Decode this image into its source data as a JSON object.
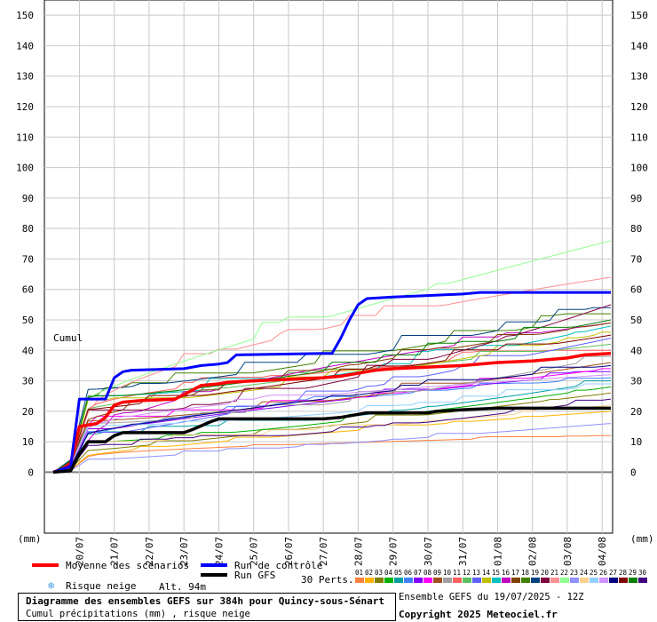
{
  "chart_data": {
    "type": "line",
    "title": "Diagramme des ensembles GEFS sur 384h pour Quincy-sous-Sénart",
    "subtitle": "Cumul précipitations (mm) , risque neige",
    "ylabel_left": "(mm)",
    "ylabel_right": "(mm)",
    "cumul_label": "Cumul",
    "ylim": [
      -20,
      155
    ],
    "yticks": [
      0,
      10,
      20,
      30,
      40,
      50,
      60,
      70,
      80,
      90,
      100,
      110,
      120,
      130,
      140,
      150
    ],
    "xlim": [
      0,
      384
    ],
    "xticks": [
      {
        "label": "20/07",
        "h": 18
      },
      {
        "label": "21/07",
        "h": 42
      },
      {
        "label": "22/07",
        "h": 66
      },
      {
        "label": "23/07",
        "h": 90
      },
      {
        "label": "24/07",
        "h": 114
      },
      {
        "label": "25/07",
        "h": 138
      },
      {
        "label": "26/07",
        "h": 162
      },
      {
        "label": "27/07",
        "h": 186
      },
      {
        "label": "28/07",
        "h": 210
      },
      {
        "label": "29/07",
        "h": 234
      },
      {
        "label": "30/07",
        "h": 258
      },
      {
        "label": "31/07",
        "h": 282
      },
      {
        "label": "01/08",
        "h": 306
      },
      {
        "label": "02/08",
        "h": 330
      },
      {
        "label": "03/08",
        "h": 354
      },
      {
        "label": "04/08",
        "h": 378
      }
    ],
    "main_series": [
      {
        "name": "Moyenne des scénarios",
        "color": "#ff0000",
        "width": 3.5,
        "points": [
          [
            0,
            0
          ],
          [
            6,
            1
          ],
          [
            12,
            3
          ],
          [
            18,
            15
          ],
          [
            30,
            16
          ],
          [
            36,
            18
          ],
          [
            42,
            22
          ],
          [
            48,
            23
          ],
          [
            60,
            23.5
          ],
          [
            84,
            24
          ],
          [
            90,
            25.5
          ],
          [
            96,
            27
          ],
          [
            102,
            28.5
          ],
          [
            114,
            29
          ],
          [
            120,
            29.5
          ],
          [
            138,
            30
          ],
          [
            162,
            30.5
          ],
          [
            186,
            31
          ],
          [
            198,
            31.5
          ],
          [
            210,
            32.5
          ],
          [
            222,
            33.5
          ],
          [
            234,
            34
          ],
          [
            258,
            34.5
          ],
          [
            282,
            35
          ],
          [
            306,
            36
          ],
          [
            330,
            36.5
          ],
          [
            354,
            37.5
          ],
          [
            366,
            38.5
          ],
          [
            384,
            39
          ]
        ]
      },
      {
        "name": "Run de contrôle",
        "color": "#0000ff",
        "width": 3,
        "points": [
          [
            0,
            0
          ],
          [
            6,
            1
          ],
          [
            12,
            2
          ],
          [
            18,
            24
          ],
          [
            36,
            24
          ],
          [
            42,
            31
          ],
          [
            48,
            33
          ],
          [
            54,
            33.5
          ],
          [
            90,
            34
          ],
          [
            102,
            35
          ],
          [
            114,
            35.5
          ],
          [
            120,
            36
          ],
          [
            126,
            38.5
          ],
          [
            186,
            39
          ],
          [
            192,
            39
          ],
          [
            198,
            44
          ],
          [
            204,
            50
          ],
          [
            210,
            55
          ],
          [
            216,
            57
          ],
          [
            234,
            57.5
          ],
          [
            258,
            58
          ],
          [
            282,
            58.5
          ],
          [
            294,
            59
          ],
          [
            384,
            59
          ]
        ]
      },
      {
        "name": "Run GFS",
        "color": "#000000",
        "width": 3.5,
        "points": [
          [
            0,
            0
          ],
          [
            12,
            0.5
          ],
          [
            18,
            6
          ],
          [
            24,
            10
          ],
          [
            36,
            10
          ],
          [
            42,
            12
          ],
          [
            48,
            13
          ],
          [
            90,
            13
          ],
          [
            96,
            14
          ],
          [
            108,
            16.5
          ],
          [
            114,
            17.5
          ],
          [
            186,
            17.5
          ],
          [
            198,
            18
          ],
          [
            210,
            19
          ],
          [
            216,
            19.5
          ],
          [
            258,
            19.5
          ],
          [
            264,
            20
          ],
          [
            282,
            20.5
          ],
          [
            306,
            21
          ],
          [
            384,
            21
          ]
        ]
      }
    ],
    "perturbation_colors": [
      "#ff8040",
      "#ffb300",
      "#808000",
      "#00b000",
      "#00a0a0",
      "#4080ff",
      "#8000ff",
      "#ff00ff",
      "#a05020",
      "#a0a0a0",
      "#ff6060",
      "#60c060",
      "#6060ff",
      "#c0c000",
      "#00c0c0",
      "#c000c0",
      "#804000",
      "#408000",
      "#004080",
      "#800040",
      "#ff9090",
      "#90ff90",
      "#9090ff",
      "#ffd090",
      "#90d0ff",
      "#d090ff",
      "#000080",
      "#800000",
      "#008000",
      "#400080"
    ],
    "perturbation_finals": [
      12,
      20,
      26,
      28,
      30,
      31,
      33,
      34,
      36,
      38,
      40,
      42,
      44,
      46,
      48,
      49,
      49,
      52,
      54,
      55,
      64,
      76,
      16,
      22,
      29,
      32,
      35,
      45,
      50,
      24
    ]
  },
  "legend": {
    "mean": "Moyenne des scénarios",
    "control": "Run de contrôle",
    "gfs": "Run GFS",
    "snow": "Risque neige",
    "altitude": "Alt. 94m",
    "perts_label": "30 Perts.",
    "pert_numbers": [
      "01",
      "02",
      "03",
      "04",
      "05",
      "06",
      "07",
      "08",
      "09",
      "10",
      "11",
      "12",
      "13",
      "14",
      "15",
      "16",
      "17",
      "18",
      "19",
      "20",
      "21",
      "22",
      "23",
      "24",
      "25",
      "26",
      "27",
      "28",
      "29",
      "30"
    ]
  },
  "footer": {
    "title": "Diagramme des ensembles GEFS sur 384h pour Quincy-sous-Sénart",
    "subtitle": "Cumul précipitations (mm) , risque neige",
    "run_info": "Ensemble GEFS du 19/07/2025 - 12Z",
    "copyright": "Copyright 2025 Meteociel.fr"
  }
}
